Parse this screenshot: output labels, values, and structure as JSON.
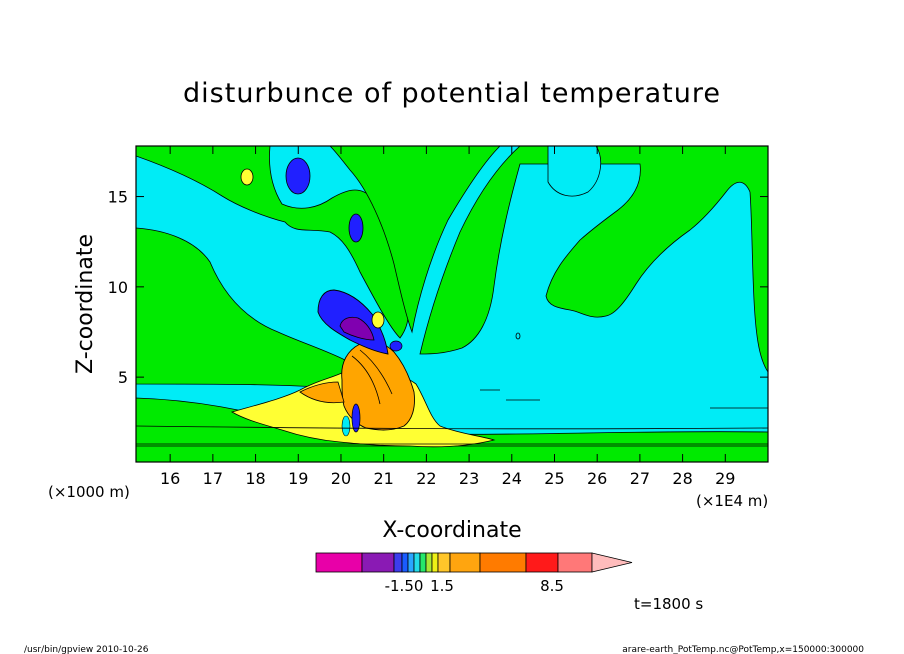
{
  "chart_data": {
    "type": "heatmap",
    "title": "disturbunce of potential temperature",
    "xlabel": "X-coordinate",
    "ylabel": "Z-coordinate",
    "x_scale_note": "(×1E4 m)",
    "y_scale_note": "(×1000 m)",
    "xlim": [
      15.2,
      30.0
    ],
    "ylim": [
      0.3,
      17.8
    ],
    "x_ticks": [
      "16",
      "17",
      "18",
      "19",
      "20",
      "21",
      "22",
      "23",
      "24",
      "25",
      "26",
      "27",
      "28",
      "29"
    ],
    "y_ticks": [
      "5",
      "10",
      "15"
    ],
    "colorbar": {
      "colors": [
        "#e800a8",
        "#8a1ab4",
        "#3d3ded",
        "#1a5cff",
        "#2aa6ff",
        "#22dce8",
        "#25e86b",
        "#a8e835",
        "#eef016",
        "#ffc62a",
        "#ffa50f",
        "#ff7b00",
        "#ff1a1a",
        "#ff7878",
        "#ffbcbc"
      ],
      "tick_labels": [
        "-1.50",
        "1.5",
        "8.5"
      ]
    },
    "legend_colors": {
      "background": "#00ecf6",
      "low_positive": "#00ea00",
      "warm1": "#ffff33",
      "warm2": "#ffa500",
      "cold1": "#2020ff",
      "cold2": "#8000b0"
    },
    "time_label": "t=1800 s"
  },
  "footer": {
    "left": "/usr/bin/gpview   2010-10-26",
    "right": "arare-earth_PotTemp.nc@PotTemp,x=150000:300000"
  }
}
